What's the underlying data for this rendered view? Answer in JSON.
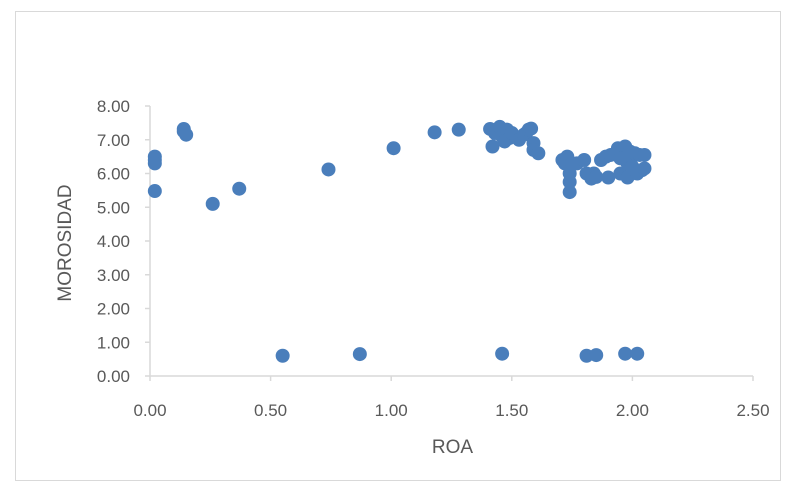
{
  "chart_data": {
    "type": "scatter",
    "title": "",
    "xlabel": "ROA",
    "ylabel": "MOROSIDAD",
    "xlim": [
      0,
      2.5
    ],
    "ylim": [
      0,
      8
    ],
    "x_ticks": [
      0,
      0.5,
      1,
      1.5,
      2,
      2.5
    ],
    "y_ticks": [
      0,
      1,
      2,
      3,
      4,
      5,
      6,
      7,
      8
    ],
    "x_tick_labels": [
      "0.00",
      "0.50",
      "1.00",
      "1.50",
      "2.00",
      "2.50"
    ],
    "y_tick_labels": [
      "0.00",
      "1.00",
      "2.00",
      "3.00",
      "4.00",
      "5.00",
      "6.00",
      "7.00",
      "8.00"
    ],
    "grid": false,
    "legend": "none",
    "marker_color": "#4a7ebb",
    "axis_color": "#d9d9d9",
    "series": [
      {
        "points": [
          [
            0.02,
            6.5
          ],
          [
            0.02,
            6.4
          ],
          [
            0.02,
            6.3
          ],
          [
            0.02,
            5.48
          ],
          [
            0.14,
            7.32
          ],
          [
            0.14,
            7.25
          ],
          [
            0.15,
            7.15
          ],
          [
            0.26,
            5.1
          ],
          [
            0.37,
            5.55
          ],
          [
            0.55,
            0.6
          ],
          [
            0.74,
            6.12
          ],
          [
            0.87,
            0.65
          ],
          [
            1.01,
            6.75
          ],
          [
            1.18,
            7.22
          ],
          [
            1.28,
            7.3
          ],
          [
            1.41,
            7.32
          ],
          [
            1.42,
            6.8
          ],
          [
            1.43,
            7.2
          ],
          [
            1.44,
            7.3
          ],
          [
            1.45,
            7.38
          ],
          [
            1.46,
            7.1
          ],
          [
            1.46,
            0.66
          ],
          [
            1.47,
            6.95
          ],
          [
            1.48,
            7.3
          ],
          [
            1.49,
            7.05
          ],
          [
            1.5,
            7.2
          ],
          [
            1.53,
            7.0
          ],
          [
            1.55,
            7.15
          ],
          [
            1.56,
            7.2
          ],
          [
            1.57,
            7.3
          ],
          [
            1.58,
            7.33
          ],
          [
            1.59,
            6.9
          ],
          [
            1.59,
            6.7
          ],
          [
            1.61,
            6.6
          ],
          [
            1.71,
            6.4
          ],
          [
            1.72,
            6.3
          ],
          [
            1.73,
            6.5
          ],
          [
            1.74,
            6.0
          ],
          [
            1.74,
            5.75
          ],
          [
            1.74,
            5.45
          ],
          [
            1.75,
            6.3
          ],
          [
            1.77,
            6.3
          ],
          [
            1.8,
            6.4
          ],
          [
            1.81,
            6.0
          ],
          [
            1.81,
            0.6
          ],
          [
            1.83,
            5.85
          ],
          [
            1.84,
            6.0
          ],
          [
            1.85,
            5.9
          ],
          [
            1.85,
            0.62
          ],
          [
            1.87,
            6.4
          ],
          [
            1.89,
            6.5
          ],
          [
            1.9,
            5.88
          ],
          [
            1.91,
            6.55
          ],
          [
            1.93,
            6.6
          ],
          [
            1.94,
            6.75
          ],
          [
            1.95,
            6.0
          ],
          [
            1.96,
            6.7
          ],
          [
            1.97,
            0.66
          ],
          [
            1.97,
            6.8
          ],
          [
            1.98,
            6.3
          ],
          [
            1.98,
            5.88
          ],
          [
            1.99,
            6.4
          ],
          [
            2.0,
            6.2
          ],
          [
            2.01,
            6.6
          ],
          [
            2.02,
            0.66
          ],
          [
            2.02,
            6.0
          ],
          [
            2.03,
            6.55
          ],
          [
            2.04,
            6.1
          ],
          [
            2.05,
            6.55
          ],
          [
            2.05,
            6.15
          ],
          [
            1.99,
            6.65
          ],
          [
            1.95,
            6.45
          ]
        ]
      }
    ]
  }
}
